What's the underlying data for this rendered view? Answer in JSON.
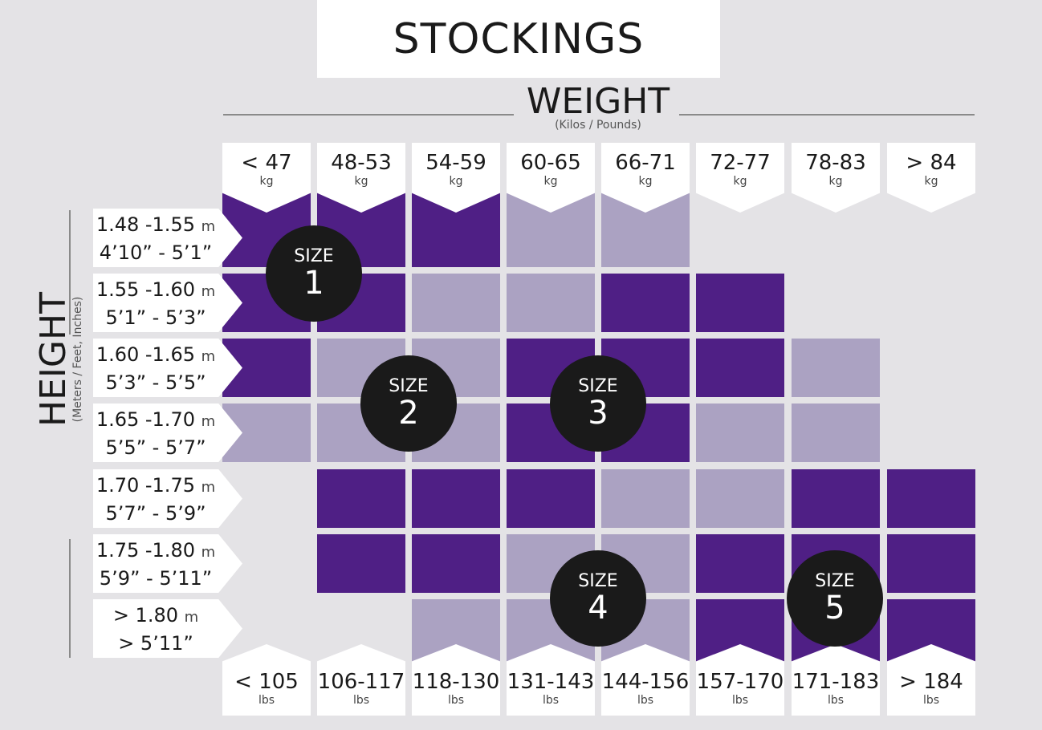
{
  "title": "STOCKINGS",
  "weight_axis": {
    "title": "WEIGHT",
    "subtitle": "(Kilos / Pounds)"
  },
  "height_axis": {
    "title": "HEIGHT",
    "subtitle": "(Meters / Feet, Inches)"
  },
  "colors": {
    "dark": "#4f1f85",
    "light": "#aba2c2",
    "badge": "#1a1a1a",
    "background": "#e4e3e6"
  },
  "chart_data": {
    "type": "heatmap",
    "title": "STOCKINGS",
    "weight_kg": [
      {
        "label": "< 47",
        "unit": "kg"
      },
      {
        "label": "48-53",
        "unit": "kg"
      },
      {
        "label": "54-59",
        "unit": "kg"
      },
      {
        "label": "60-65",
        "unit": "kg"
      },
      {
        "label": "66-71",
        "unit": "kg"
      },
      {
        "label": "72-77",
        "unit": "kg"
      },
      {
        "label": "78-83",
        "unit": "kg"
      },
      {
        "label": "> 84",
        "unit": "kg"
      }
    ],
    "weight_lbs": [
      {
        "label": "< 105",
        "unit": "lbs"
      },
      {
        "label": "106-117",
        "unit": "lbs"
      },
      {
        "label": "118-130",
        "unit": "lbs"
      },
      {
        "label": "131-143",
        "unit": "lbs"
      },
      {
        "label": "144-156",
        "unit": "lbs"
      },
      {
        "label": "157-170",
        "unit": "lbs"
      },
      {
        "label": "171-183",
        "unit": "lbs"
      },
      {
        "label": "> 184",
        "unit": "lbs"
      }
    ],
    "heights": [
      {
        "meters": "1.48 -1.55",
        "unit": "m",
        "feet": "4’10” - 5’1”"
      },
      {
        "meters": "1.55 -1.60",
        "unit": "m",
        "feet": "5’1” - 5’3”"
      },
      {
        "meters": "1.60 -1.65",
        "unit": "m",
        "feet": "5’3” - 5’5”"
      },
      {
        "meters": "1.65 -1.70",
        "unit": "m",
        "feet": "5’5” - 5’7”"
      },
      {
        "meters": "1.70 -1.75",
        "unit": "m",
        "feet": "5’7” - 5’9”"
      },
      {
        "meters": "1.75 -1.80",
        "unit": "m",
        "feet": "5’9” - 5’11”"
      },
      {
        "meters": "> 1.80",
        "unit": "m",
        "feet": "> 5’11”"
      }
    ],
    "grid_sizes": [
      [
        1,
        1,
        1,
        2,
        2,
        0,
        0,
        0
      ],
      [
        1,
        1,
        2,
        2,
        3,
        3,
        0,
        0
      ],
      [
        1,
        2,
        2,
        3,
        3,
        3,
        4,
        0
      ],
      [
        2,
        2,
        2,
        3,
        3,
        4,
        4,
        0
      ],
      [
        0,
        3,
        3,
        3,
        4,
        4,
        5,
        5
      ],
      [
        0,
        3,
        3,
        4,
        4,
        5,
        5,
        5
      ],
      [
        0,
        0,
        4,
        4,
        4,
        5,
        5,
        5
      ]
    ],
    "badges": [
      {
        "label": "SIZE",
        "number": "1",
        "row": 0.5,
        "col": 0.5
      },
      {
        "label": "SIZE",
        "number": "2",
        "row": 2.5,
        "col": 1.5
      },
      {
        "label": "SIZE",
        "number": "3",
        "row": 2.5,
        "col": 3.5
      },
      {
        "label": "SIZE",
        "number": "4",
        "row": 5.5,
        "col": 3.5
      },
      {
        "label": "SIZE",
        "number": "5",
        "row": 5.5,
        "col": 6
      }
    ]
  }
}
